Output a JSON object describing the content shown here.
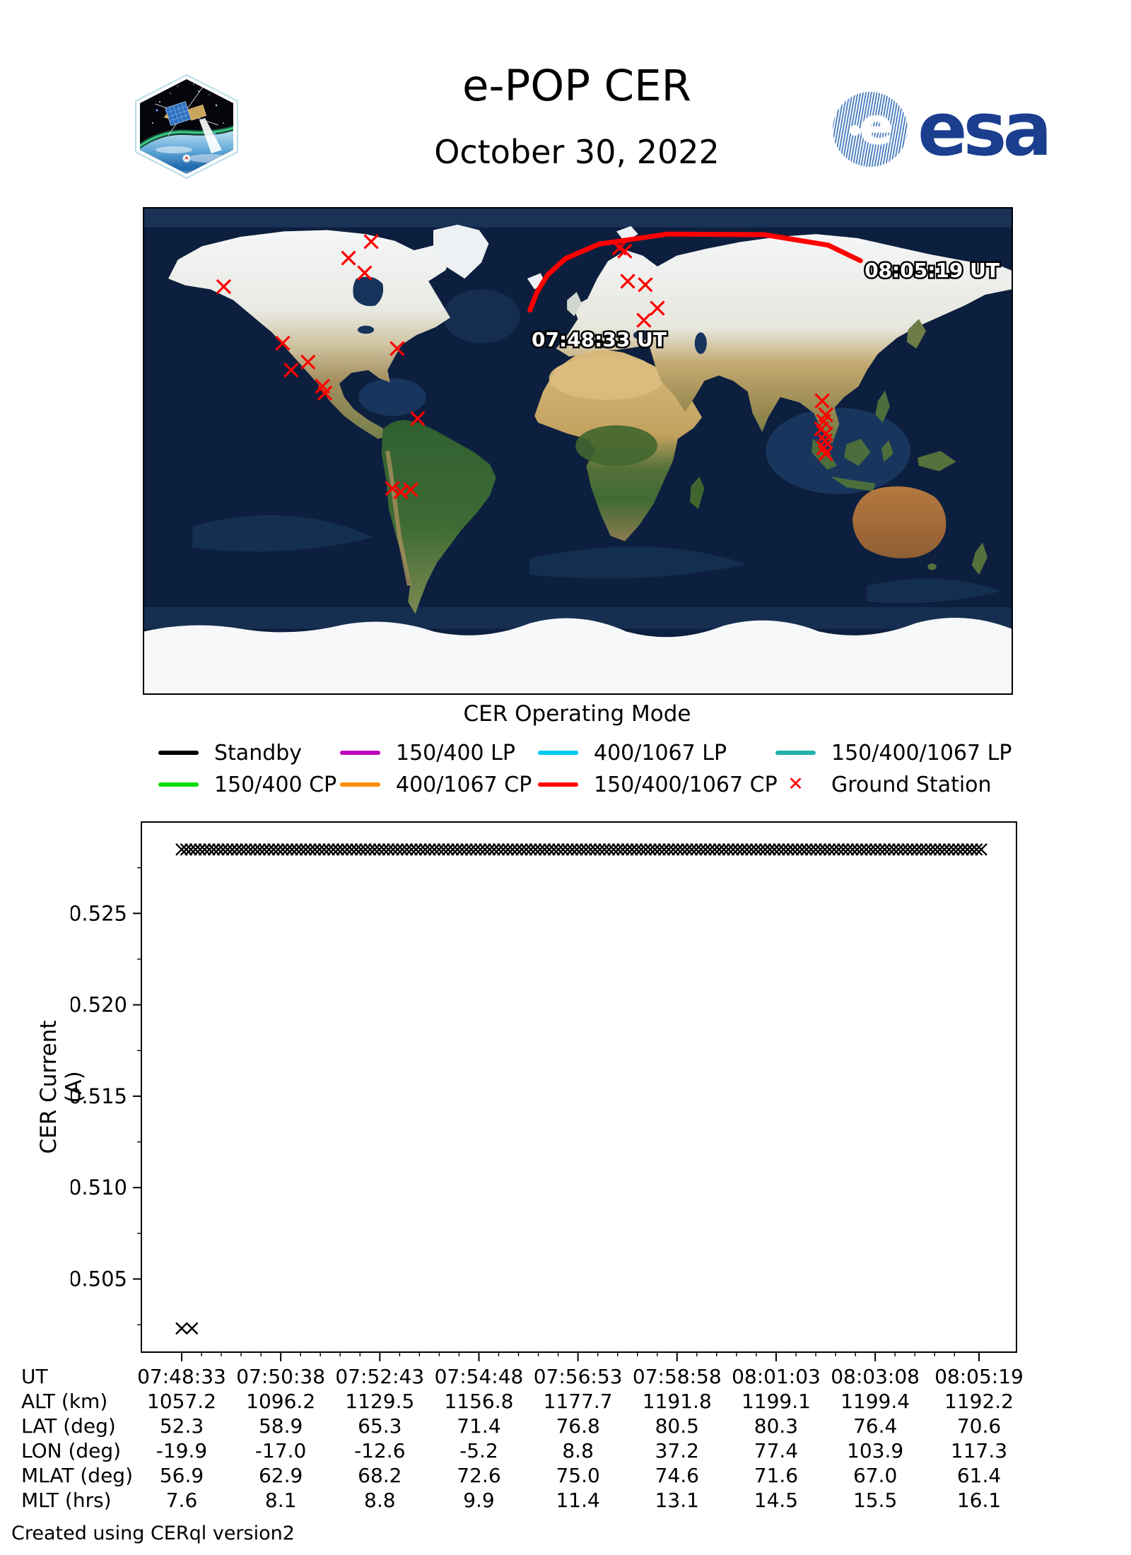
{
  "header": {
    "title": "e-POP CER",
    "date": "October 30, 2022",
    "esa_wordmark": "esa",
    "patch_name": "CASSIOPE"
  },
  "map": {
    "caption": "CER Operating Mode",
    "pass_start_label": "07:48:33 UT",
    "pass_end_label": "08:05:19 UT",
    "trajectory_color": "#ff0000",
    "station_color": "#ff0000",
    "pass_start_label_anchor_lonlat": [
      -19.2,
      38.8
    ],
    "pass_end_label_anchor_lonlat": [
      119.0,
      64.5
    ],
    "trajectory_lonlat": [
      [
        -19.9,
        52.3
      ],
      [
        -17.0,
        58.9
      ],
      [
        -12.6,
        65.3
      ],
      [
        -5.2,
        71.4
      ],
      [
        8.8,
        76.8
      ],
      [
        37.2,
        80.5
      ],
      [
        77.4,
        80.3
      ],
      [
        103.9,
        76.4
      ],
      [
        117.3,
        70.6
      ]
    ],
    "ground_stations_lonlat": [
      [
        -85.8,
        77.7
      ],
      [
        -95.2,
        71.6
      ],
      [
        -88.5,
        66.1
      ],
      [
        -147.0,
        61.0
      ],
      [
        -122.5,
        40.0
      ],
      [
        -112.0,
        33.0
      ],
      [
        -119.0,
        30.0
      ],
      [
        -106.0,
        24.0
      ],
      [
        -105.0,
        21.5
      ],
      [
        -75.0,
        38.0
      ],
      [
        -66.5,
        12.0
      ],
      [
        -77.0,
        -13.9
      ],
      [
        -73.5,
        -15.2
      ],
      [
        -69.4,
        -14.4
      ],
      [
        17.2,
        75.3
      ],
      [
        19.5,
        74.2
      ],
      [
        20.7,
        63.0
      ],
      [
        28.0,
        61.7
      ],
      [
        33.0,
        53.0
      ],
      [
        27.4,
        48.5
      ],
      [
        101.4,
        18.6
      ],
      [
        102.9,
        13.4
      ],
      [
        102.0,
        11.0
      ],
      [
        101.1,
        8.2
      ],
      [
        102.9,
        6.3
      ],
      [
        102.6,
        3.7
      ],
      [
        102.0,
        1.1
      ],
      [
        102.9,
        -1.0
      ]
    ]
  },
  "legend": {
    "items": [
      {
        "label": "Standby",
        "color": "#000000",
        "swatch": "line"
      },
      {
        "label": "150/400 LP",
        "color": "#bf00bf",
        "swatch": "line"
      },
      {
        "label": "400/1067 LP",
        "color": "#00c8f0",
        "swatch": "line"
      },
      {
        "label": "150/400/1067 LP",
        "color": "#20b2aa",
        "swatch": "line"
      },
      {
        "label": "150/400 CP",
        "color": "#00dd00",
        "swatch": "line"
      },
      {
        "label": "400/1067 CP",
        "color": "#ff8c00",
        "swatch": "line"
      },
      {
        "label": "150/400/1067 CP",
        "color": "#ff0000",
        "swatch": "line"
      },
      {
        "label": "Ground Station",
        "color": "#ff0000",
        "swatch": "x"
      }
    ]
  },
  "chart_data": {
    "type": "scatter",
    "title": "",
    "xlabel": "",
    "ylabel": "CER Current (A)",
    "ylim": [
      0.501,
      0.53
    ],
    "yticks": [
      0.505,
      0.51,
      0.515,
      0.52,
      0.525
    ],
    "marker": "x",
    "marker_color": "#000000",
    "grid": false,
    "x_ticks": [
      {
        "label": "07:48:33",
        "t_s": 0
      },
      {
        "label": "07:50:38",
        "t_s": 125
      },
      {
        "label": "07:52:43",
        "t_s": 250
      },
      {
        "label": "07:54:48",
        "t_s": 375
      },
      {
        "label": "07:56:53",
        "t_s": 500
      },
      {
        "label": "07:58:58",
        "t_s": 625
      },
      {
        "label": "08:01:03",
        "t_s": 750
      },
      {
        "label": "08:03:08",
        "t_s": 875
      },
      {
        "label": "08:05:19",
        "t_s": 1006
      }
    ],
    "series": [
      {
        "name": "CER current steady band",
        "style": "dense-x-band",
        "value_a": 0.5285,
        "t_start_s": 0,
        "t_end_s": 1010
      },
      {
        "name": "CER current startup points",
        "style": "x-points",
        "value_a": 0.5023,
        "times_s": [
          0,
          13
        ]
      }
    ],
    "table": {
      "row_labels": [
        "UT",
        "ALT (km)",
        "LAT (deg)",
        "LON (deg)",
        "MLAT (deg)",
        "MLT (hrs)"
      ],
      "rows": [
        [
          "07:48:33",
          "07:50:38",
          "07:52:43",
          "07:54:48",
          "07:56:53",
          "07:58:58",
          "08:01:03",
          "08:03:08",
          "08:05:19"
        ],
        [
          "1057.2",
          "1096.2",
          "1129.5",
          "1156.8",
          "1177.7",
          "1191.8",
          "1199.1",
          "1199.4",
          "1192.2"
        ],
        [
          "52.3",
          "58.9",
          "65.3",
          "71.4",
          "76.8",
          "80.5",
          "80.3",
          "76.4",
          "70.6"
        ],
        [
          "-19.9",
          "-17.0",
          "-12.6",
          "-5.2",
          "8.8",
          "37.2",
          "77.4",
          "103.9",
          "117.3"
        ],
        [
          "56.9",
          "62.9",
          "68.2",
          "72.6",
          "75.0",
          "74.6",
          "71.6",
          "67.0",
          "61.4"
        ],
        [
          "7.6",
          "8.1",
          "8.8",
          "9.9",
          "11.4",
          "13.1",
          "14.5",
          "15.5",
          "16.1"
        ]
      ]
    }
  },
  "footer": {
    "credit": "Created using CERql version2"
  }
}
